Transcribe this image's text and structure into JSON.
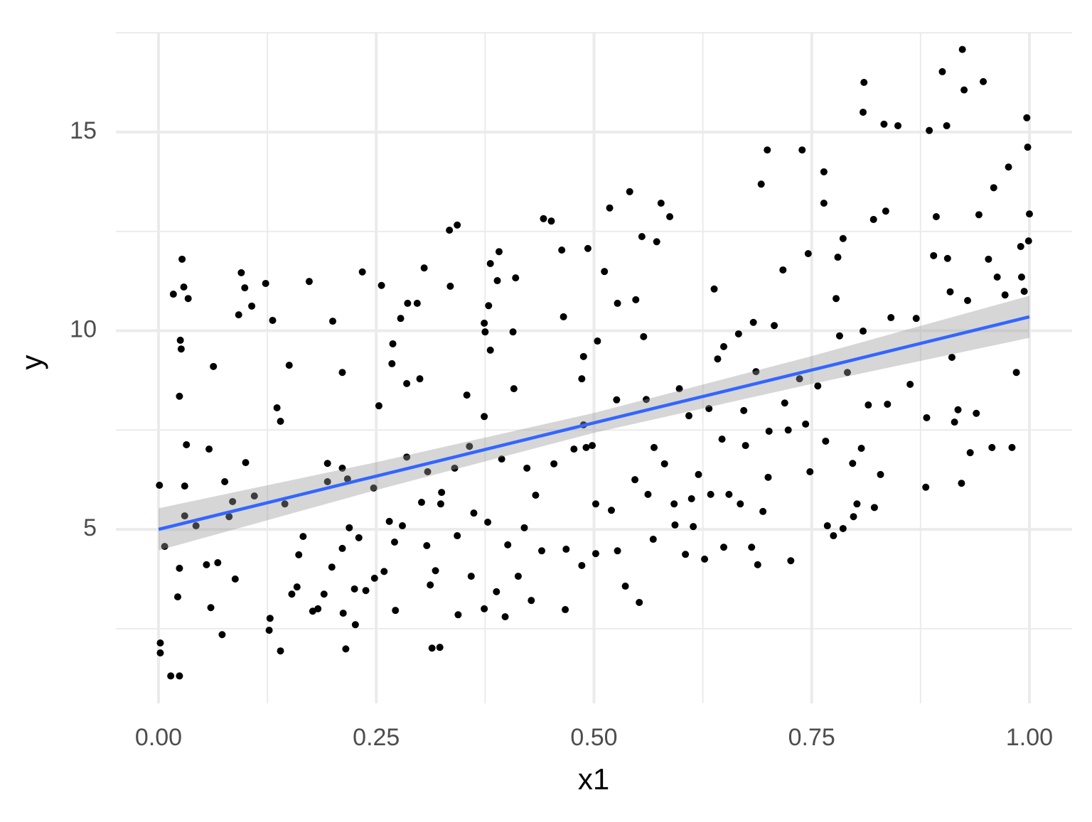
{
  "chart_data": {
    "type": "scatter",
    "x_label": "x1",
    "y_label": "y",
    "point_color": "#000000",
    "xlim": [
      -0.049,
      1.049
    ],
    "ylim": [
      0.62,
      17.52
    ],
    "xticks": [
      {
        "value": 0,
        "label": "0.00"
      },
      {
        "value": 0.25,
        "label": "0.25"
      },
      {
        "value": 0.5,
        "label": "0.50"
      },
      {
        "value": 0.75,
        "label": "0.75"
      },
      {
        "value": 1,
        "label": "1.00"
      }
    ],
    "yticks": [
      5,
      10,
      15
    ],
    "x_minor_grid": [
      0.125,
      0.375,
      0.625,
      0.875
    ],
    "y_minor_grid": [
      2.5,
      7.5,
      12.5,
      17.5
    ],
    "grid": true,
    "x": [
      0.001,
      0.002,
      0.002,
      0.007,
      0.014,
      0.024,
      0.017,
      0.027,
      0.029,
      0.025,
      0.026,
      0.024,
      0.032,
      0.03,
      0.03,
      0.024,
      0.022,
      0.034,
      0.043,
      0.055,
      0.058,
      0.063,
      0.06,
      0.068,
      0.073,
      0.076,
      0.081,
      0.085,
      0.088,
      0.092,
      0.095,
      0.099,
      0.1,
      0.107,
      0.11,
      0.123,
      0.127,
      0.128,
      0.131,
      0.136,
      0.14,
      0.14,
      0.145,
      0.15,
      0.153,
      0.159,
      0.161,
      0.166,
      0.173,
      0.177,
      0.183,
      0.19,
      0.194,
      0.194,
      0.199,
      0.2,
      0.211,
      0.211,
      0.212,
      0.215,
      0.211,
      0.217,
      0.219,
      0.225,
      0.226,
      0.23,
      0.234,
      0.238,
      0.247,
      0.248,
      0.253,
      0.256,
      0.259,
      0.265,
      0.268,
      0.269,
      0.271,
      0.272,
      0.278,
      0.28,
      0.285,
      0.285,
      0.286,
      0.297,
      0.3,
      0.302,
      0.305,
      0.308,
      0.309,
      0.312,
      0.314,
      0.318,
      0.323,
      0.324,
      0.325,
      0.334,
      0.335,
      0.34,
      0.343,
      0.343,
      0.344,
      0.354,
      0.357,
      0.359,
      0.362,
      0.374,
      0.374,
      0.374,
      0.375,
      0.379,
      0.381,
      0.381,
      0.378,
      0.388,
      0.389,
      0.391,
      0.394,
      0.398,
      0.401,
      0.407,
      0.408,
      0.41,
      0.413,
      0.42,
      0.423,
      0.428,
      0.433,
      0.44,
      0.442,
      0.451,
      0.454,
      0.463,
      0.465,
      0.467,
      0.468,
      0.477,
      0.486,
      0.488,
      0.488,
      0.486,
      0.493,
      0.491,
      0.498,
      0.502,
      0.502,
      0.504,
      0.512,
      0.518,
      0.52,
      0.526,
      0.527,
      0.527,
      0.536,
      0.541,
      0.547,
      0.548,
      0.552,
      0.555,
      0.557,
      0.56,
      0.562,
      0.568,
      0.569,
      0.572,
      0.577,
      0.581,
      0.587,
      0.592,
      0.593,
      0.598,
      0.605,
      0.609,
      0.612,
      0.614,
      0.62,
      0.627,
      0.632,
      0.634,
      0.638,
      0.642,
      0.647,
      0.649,
      0.649,
      0.655,
      0.666,
      0.668,
      0.672,
      0.674,
      0.681,
      0.683,
      0.686,
      0.688,
      0.692,
      0.694,
      0.699,
      0.7,
      0.701,
      0.707,
      0.717,
      0.719,
      0.723,
      0.726,
      0.736,
      0.739,
      0.743,
      0.746,
      0.748,
      0.757,
      0.764,
      0.764,
      0.766,
      0.768,
      0.775,
      0.778,
      0.78,
      0.782,
      0.786,
      0.786,
      0.791,
      0.797,
      0.798,
      0.802,
      0.807,
      0.809,
      0.81,
      0.809,
      0.815,
      0.821,
      0.822,
      0.829,
      0.833,
      0.835,
      0.837,
      0.841,
      0.849,
      0.863,
      0.87,
      0.881,
      0.882,
      0.885,
      0.89,
      0.893,
      0.9,
      0.905,
      0.906,
      0.909,
      0.911,
      0.914,
      0.918,
      0.922,
      0.923,
      0.925,
      0.929,
      0.932,
      0.939,
      0.942,
      0.947,
      0.953,
      0.957,
      0.959,
      0.963,
      0.972,
      0.976,
      0.98,
      0.985,
      0.99,
      0.991,
      0.994,
      0.997,
      0.998,
      0.999,
      1.0
    ],
    "values": [
      6.11,
      2.14,
      1.89,
      4.57,
      1.31,
      1.31,
      10.92,
      11.8,
      11.1,
      9.76,
      9.54,
      8.35,
      7.13,
      6.09,
      5.34,
      4.02,
      3.3,
      10.81,
      5.09,
      4.11,
      7.02,
      9.1,
      3.03,
      4.16,
      2.35,
      6.2,
      5.32,
      5.7,
      3.75,
      10.4,
      11.46,
      11.08,
      6.68,
      10.62,
      5.84,
      11.19,
      2.46,
      2.76,
      10.26,
      8.06,
      7.72,
      1.94,
      5.64,
      9.13,
      3.37,
      3.55,
      4.36,
      4.82,
      11.24,
      2.94,
      3.0,
      3.37,
      6.66,
      6.2,
      4.05,
      10.24,
      8.95,
      6.54,
      2.89,
      1.99,
      4.52,
      6.27,
      5.04,
      3.5,
      2.6,
      4.79,
      11.48,
      3.46,
      6.04,
      3.77,
      8.11,
      11.14,
      3.94,
      5.2,
      9.17,
      9.67,
      4.68,
      2.96,
      10.31,
      5.09,
      8.67,
      6.82,
      10.69,
      10.69,
      8.79,
      5.68,
      11.58,
      4.59,
      6.45,
      3.6,
      2.01,
      3.96,
      2.03,
      5.64,
      5.93,
      12.53,
      11.12,
      6.54,
      4.84,
      12.66,
      2.85,
      8.38,
      7.09,
      3.82,
      5.41,
      7.84,
      3.0,
      10.19,
      9.97,
      10.63,
      9.51,
      11.69,
      5.18,
      3.43,
      11.26,
      11.99,
      6.77,
      2.8,
      4.61,
      9.97,
      8.54,
      11.33,
      3.82,
      5.04,
      6.54,
      3.21,
      5.86,
      4.46,
      12.82,
      12.76,
      6.65,
      12.03,
      10.35,
      2.98,
      4.5,
      7.02,
      8.79,
      9.35,
      7.63,
      4.09,
      12.07,
      7.06,
      7.11,
      5.64,
      4.39,
      9.74,
      11.49,
      13.09,
      5.48,
      8.26,
      10.69,
      4.46,
      3.57,
      13.5,
      6.25,
      10.78,
      3.16,
      12.37,
      9.85,
      8.27,
      5.88,
      4.75,
      7.06,
      12.24,
      13.21,
      6.65,
      12.87,
      5.64,
      5.11,
      8.54,
      4.37,
      7.86,
      5.77,
      5.07,
      6.38,
      4.25,
      8.04,
      5.88,
      11.05,
      9.29,
      7.27,
      9.6,
      4.55,
      5.88,
      9.92,
      5.64,
      7.99,
      7.11,
      4.55,
      10.21,
      8.97,
      4.11,
      13.69,
      5.45,
      14.55,
      6.31,
      7.47,
      10.13,
      11.53,
      8.18,
      7.5,
      4.21,
      8.79,
      14.55,
      7.65,
      11.94,
      6.45,
      8.61,
      14.0,
      13.21,
      7.22,
      5.09,
      4.84,
      10.81,
      11.85,
      9.87,
      12.32,
      5.02,
      8.95,
      6.66,
      5.32,
      5.64,
      7.04,
      15.5,
      16.25,
      9.99,
      8.13,
      12.8,
      5.55,
      6.38,
      15.2,
      13.01,
      8.15,
      10.33,
      15.16,
      8.65,
      10.31,
      6.06,
      7.81,
      15.04,
      11.89,
      12.87,
      16.52,
      15.16,
      11.82,
      10.98,
      9.33,
      7.7,
      8.01,
      6.16,
      17.08,
      16.06,
      10.76,
      6.93,
      7.92,
      12.92,
      16.27,
      11.8,
      7.06,
      13.6,
      11.35,
      10.9,
      14.12,
      7.06,
      8.95,
      12.12,
      11.35,
      10.99,
      15.36,
      14.62,
      12.26,
      12.94
    ],
    "fit": {
      "color": "#3366ff",
      "band_color": "#999999",
      "x": [
        0,
        0.25,
        0.5,
        0.75,
        1
      ],
      "values": [
        5.0,
        6.34,
        7.68,
        9.01,
        10.35
      ],
      "lower": [
        4.47,
        5.99,
        7.43,
        8.66,
        9.82
      ],
      "upper": [
        5.53,
        6.69,
        7.93,
        9.36,
        10.88
      ]
    }
  }
}
